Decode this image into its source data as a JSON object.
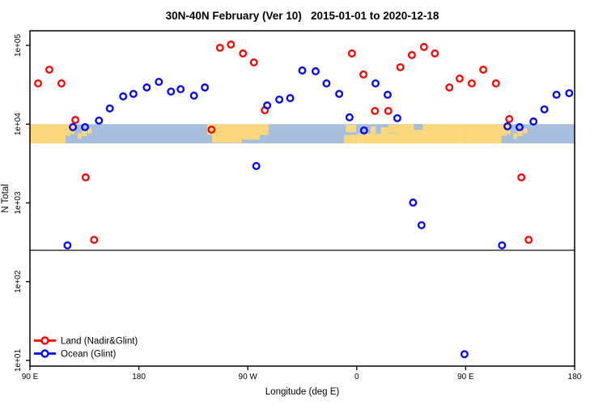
{
  "chart_data": {
    "type": "scatter",
    "title": "30N-40N February (Ver 10)   2015-01-01 to 2020-12-18",
    "xlabel": "Longitude (deg E)",
    "ylabel": "N Total",
    "x_axis": {
      "unit": "deg E",
      "xlim": [
        90,
        540
      ],
      "ticks": [
        {
          "lon": 90,
          "label": "90 E"
        },
        {
          "lon": 180,
          "label": "180"
        },
        {
          "lon": 270,
          "label": "90 W"
        },
        {
          "lon": 360,
          "label": "0"
        },
        {
          "lon": 450,
          "label": "90 E"
        },
        {
          "lon": 540,
          "label": "180"
        }
      ]
    },
    "y_axis": {
      "scale": "log10",
      "ticks": [
        {
          "value": 10,
          "label": "1e+01"
        },
        {
          "value": 100,
          "label": "1e+02"
        },
        {
          "value": 1000,
          "label": "1e+03"
        },
        {
          "value": 10000,
          "label": "1e+04"
        },
        {
          "value": 100000,
          "label": "1e+05"
        }
      ]
    },
    "ref_line_value": 250,
    "map_band": {
      "top_value": 10000,
      "bottom_value": 5700
    },
    "legend_position": "bottom-left",
    "series": [
      {
        "name": "Land (Nadir&Glint)",
        "color": "#ff0000",
        "points": [
          [
            96.7,
            32900
          ],
          [
            106,
            49100
          ],
          [
            116,
            32900
          ],
          [
            127.5,
            11300
          ],
          [
            136,
            2110
          ],
          [
            143,
            340
          ],
          [
            240,
            8520
          ],
          [
            247,
            93200
          ],
          [
            256,
            102400
          ],
          [
            266,
            78900
          ],
          [
            275,
            60800
          ],
          [
            284,
            15000
          ],
          [
            356,
            78900
          ],
          [
            365.5,
            42700
          ],
          [
            375,
            14700
          ],
          [
            386,
            14700
          ],
          [
            396,
            52700
          ],
          [
            405.5,
            75300
          ],
          [
            415.5,
            95400
          ],
          [
            424.5,
            78900
          ],
          [
            436.5,
            29200
          ],
          [
            445,
            37900
          ],
          [
            455,
            32900
          ],
          [
            464.5,
            49100
          ],
          [
            475,
            32900
          ],
          [
            486,
            11600
          ],
          [
            496,
            2110
          ],
          [
            502,
            340
          ]
        ]
      },
      {
        "name": "Ocean (Glint)",
        "color": "#0000ff",
        "points": [
          [
            121,
            289
          ],
          [
            125.5,
            9160
          ],
          [
            135.5,
            9160
          ],
          [
            147,
            11100
          ],
          [
            156,
            15800
          ],
          [
            167,
            22500
          ],
          [
            175.5,
            24200
          ],
          [
            186.5,
            29200
          ],
          [
            196.5,
            34400
          ],
          [
            206.5,
            25900
          ],
          [
            214.5,
            27800
          ],
          [
            225.5,
            23000
          ],
          [
            234.5,
            29200
          ],
          [
            277,
            2940
          ],
          [
            286,
            17300
          ],
          [
            296,
            20500
          ],
          [
            305,
            21400
          ],
          [
            315,
            48000
          ],
          [
            326,
            46900
          ],
          [
            335,
            32900
          ],
          [
            345.5,
            24200
          ],
          [
            354,
            12200
          ],
          [
            366,
            8320
          ],
          [
            375.5,
            32900
          ],
          [
            385.5,
            23600
          ],
          [
            393.5,
            11900
          ],
          [
            406.5,
            1010
          ],
          [
            413.5,
            521
          ],
          [
            449,
            12
          ],
          [
            480,
            289
          ],
          [
            484.5,
            9370
          ],
          [
            494.5,
            9160
          ],
          [
            506,
            10800
          ],
          [
            515,
            15400
          ],
          [
            525,
            23600
          ],
          [
            535.5,
            24700
          ]
        ]
      }
    ],
    "colors": {
      "map_land": "#fbd87e",
      "map_ocean": "#a8bedd",
      "ref_line": "#3c3c3c",
      "axis": "#000000"
    }
  }
}
